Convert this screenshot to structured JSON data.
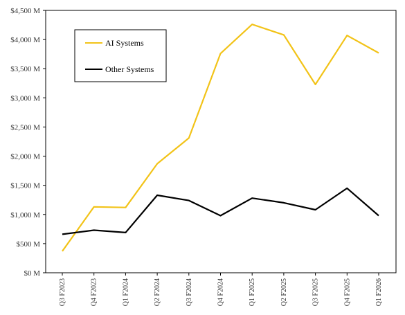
{
  "chart_data": {
    "type": "line",
    "categories": [
      "Q3 F2023",
      "Q4 F2023",
      "Q1 F2024",
      "Q2 F2024",
      "Q3 F2024",
      "Q4 F2024",
      "Q1 F2025",
      "Q2 F2025",
      "Q3 F2025",
      "Q4 F2025",
      "Q1 F2026"
    ],
    "series": [
      {
        "name": "AI Systems",
        "color": "#F2C318",
        "values": [
          370,
          1130,
          1120,
          1870,
          2310,
          3760,
          4260,
          4080,
          3230,
          4070,
          3770
        ]
      },
      {
        "name": "Other Systems",
        "color": "#000000",
        "values": [
          660,
          730,
          690,
          1330,
          1240,
          980,
          1280,
          1200,
          1080,
          1450,
          980
        ]
      }
    ],
    "ylim": [
      0,
      4500
    ],
    "yticks": [
      "$0 M",
      "$500 M",
      "$1,000 M",
      "$1,500 M",
      "$2,000 M",
      "$2,500 M",
      "$3,000 M",
      "$3,500 M",
      "$4,000 M",
      "$4,500 M"
    ],
    "ytick_values": [
      0,
      500,
      1000,
      1500,
      2000,
      2500,
      3000,
      3500,
      4000,
      4500
    ],
    "grid": false,
    "legend_placement": "top-left",
    "title": "",
    "xlabel": "",
    "ylabel": ""
  }
}
